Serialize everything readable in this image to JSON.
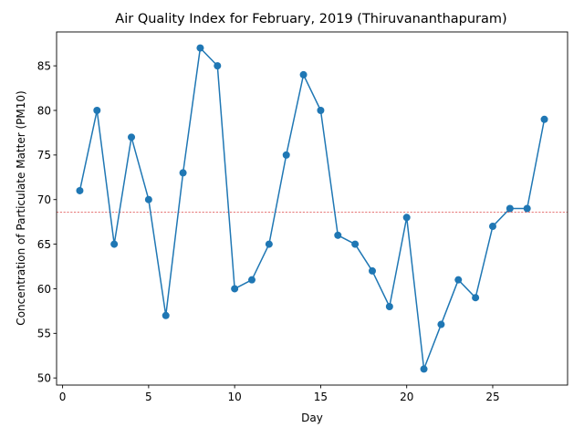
{
  "chart_data": {
    "type": "line",
    "title": "Air Quality Index for February, 2019 (Thiruvananthapuram)",
    "xlabel": "Day",
    "ylabel": "Concentration of Particulate Matter (PM10)",
    "xlim": [
      -0.35,
      29.35
    ],
    "ylim": [
      49.2,
      88.8
    ],
    "xticks": [
      0,
      5,
      10,
      15,
      20,
      25
    ],
    "yticks": [
      50,
      55,
      60,
      65,
      70,
      75,
      80,
      85
    ],
    "grid": false,
    "legend": "none",
    "series": [
      {
        "x": [
          1,
          2,
          3,
          4,
          5,
          6,
          7,
          8,
          9,
          10,
          11,
          12,
          13,
          14,
          15,
          16,
          17,
          18,
          19,
          20,
          21,
          22,
          23,
          24,
          25,
          26,
          27,
          28
        ],
        "values": [
          71,
          80,
          65,
          77,
          70,
          57,
          73,
          87,
          85,
          60,
          61,
          65,
          75,
          84,
          80,
          66,
          65,
          62,
          58,
          68,
          51,
          56,
          61,
          59,
          67,
          69,
          69,
          79
        ],
        "color": "#1f77b4",
        "marker": "circle"
      }
    ],
    "reference_line": {
      "y": 68.57,
      "color": "#d62728",
      "style": "dashed"
    }
  }
}
